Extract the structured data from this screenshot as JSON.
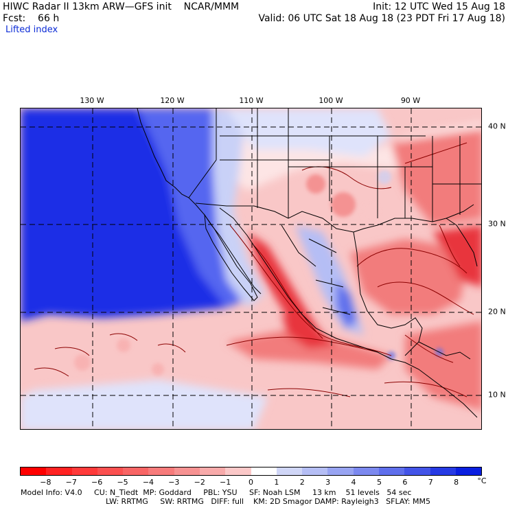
{
  "header": {
    "line1_left": "HIWC Radar II 13km ARW—GFS init    NCAR/MMM",
    "line1_right": "Init: 12 UTC Wed 15 Aug 18",
    "line2_left": "Fcst:    66 h",
    "line2_right": "Valid: 06 UTC Sat 18 Aug 18 (23 PDT Fri 17 Aug 18)",
    "field_name": "Lifted index"
  },
  "map": {
    "lon_ticks": [
      "130 W",
      "120 W",
      "110 W",
      "100 W",
      "90 W"
    ],
    "lat_ticks": [
      "40 N",
      "30 N",
      "20 N",
      "10 N"
    ],
    "colors": {
      "ocean_stable": "#1a2ee6",
      "stable_mid": "#5566f0",
      "stable_light": "#c9d1f7",
      "neutral": "#ffffff",
      "unstable_light": "#f9c7c7",
      "unstable_mid": "#f27b7b",
      "unstable_strong": "#e8343c",
      "contour": "#8b0000",
      "boundary": "#000000"
    }
  },
  "colorbar": {
    "labels": [
      "−8",
      "−7",
      "−6",
      "−5",
      "−4",
      "−3",
      "−2",
      "−1",
      "0",
      "1",
      "2",
      "3",
      "4",
      "5",
      "6",
      "7",
      "8"
    ],
    "unit": "°C",
    "colors": [
      "#ff0000",
      "#ff2222",
      "#ff3a3a",
      "#fb5050",
      "#f86565",
      "#f77b7b",
      "#f79292",
      "#f8aaaa",
      "#fbc8c8",
      "#ffffff",
      "#d0d6f7",
      "#b5bef5",
      "#98a4f2",
      "#7c89ef",
      "#5f6fec",
      "#4354e8",
      "#263ae4",
      "#0a1fe0"
    ]
  },
  "footer": {
    "line1": "Model Info: V4.0     CU: N_Tiedt  MP: Goddard     PBL: YSU     SF: Noah LSM     13 km    51 levels   54 sec",
    "line2": "LW: RRTMG     SW: RRTMG   DIFF: full    KM: 2D Smagor DAMP: Rayleigh3   SFLAY: MM5"
  }
}
